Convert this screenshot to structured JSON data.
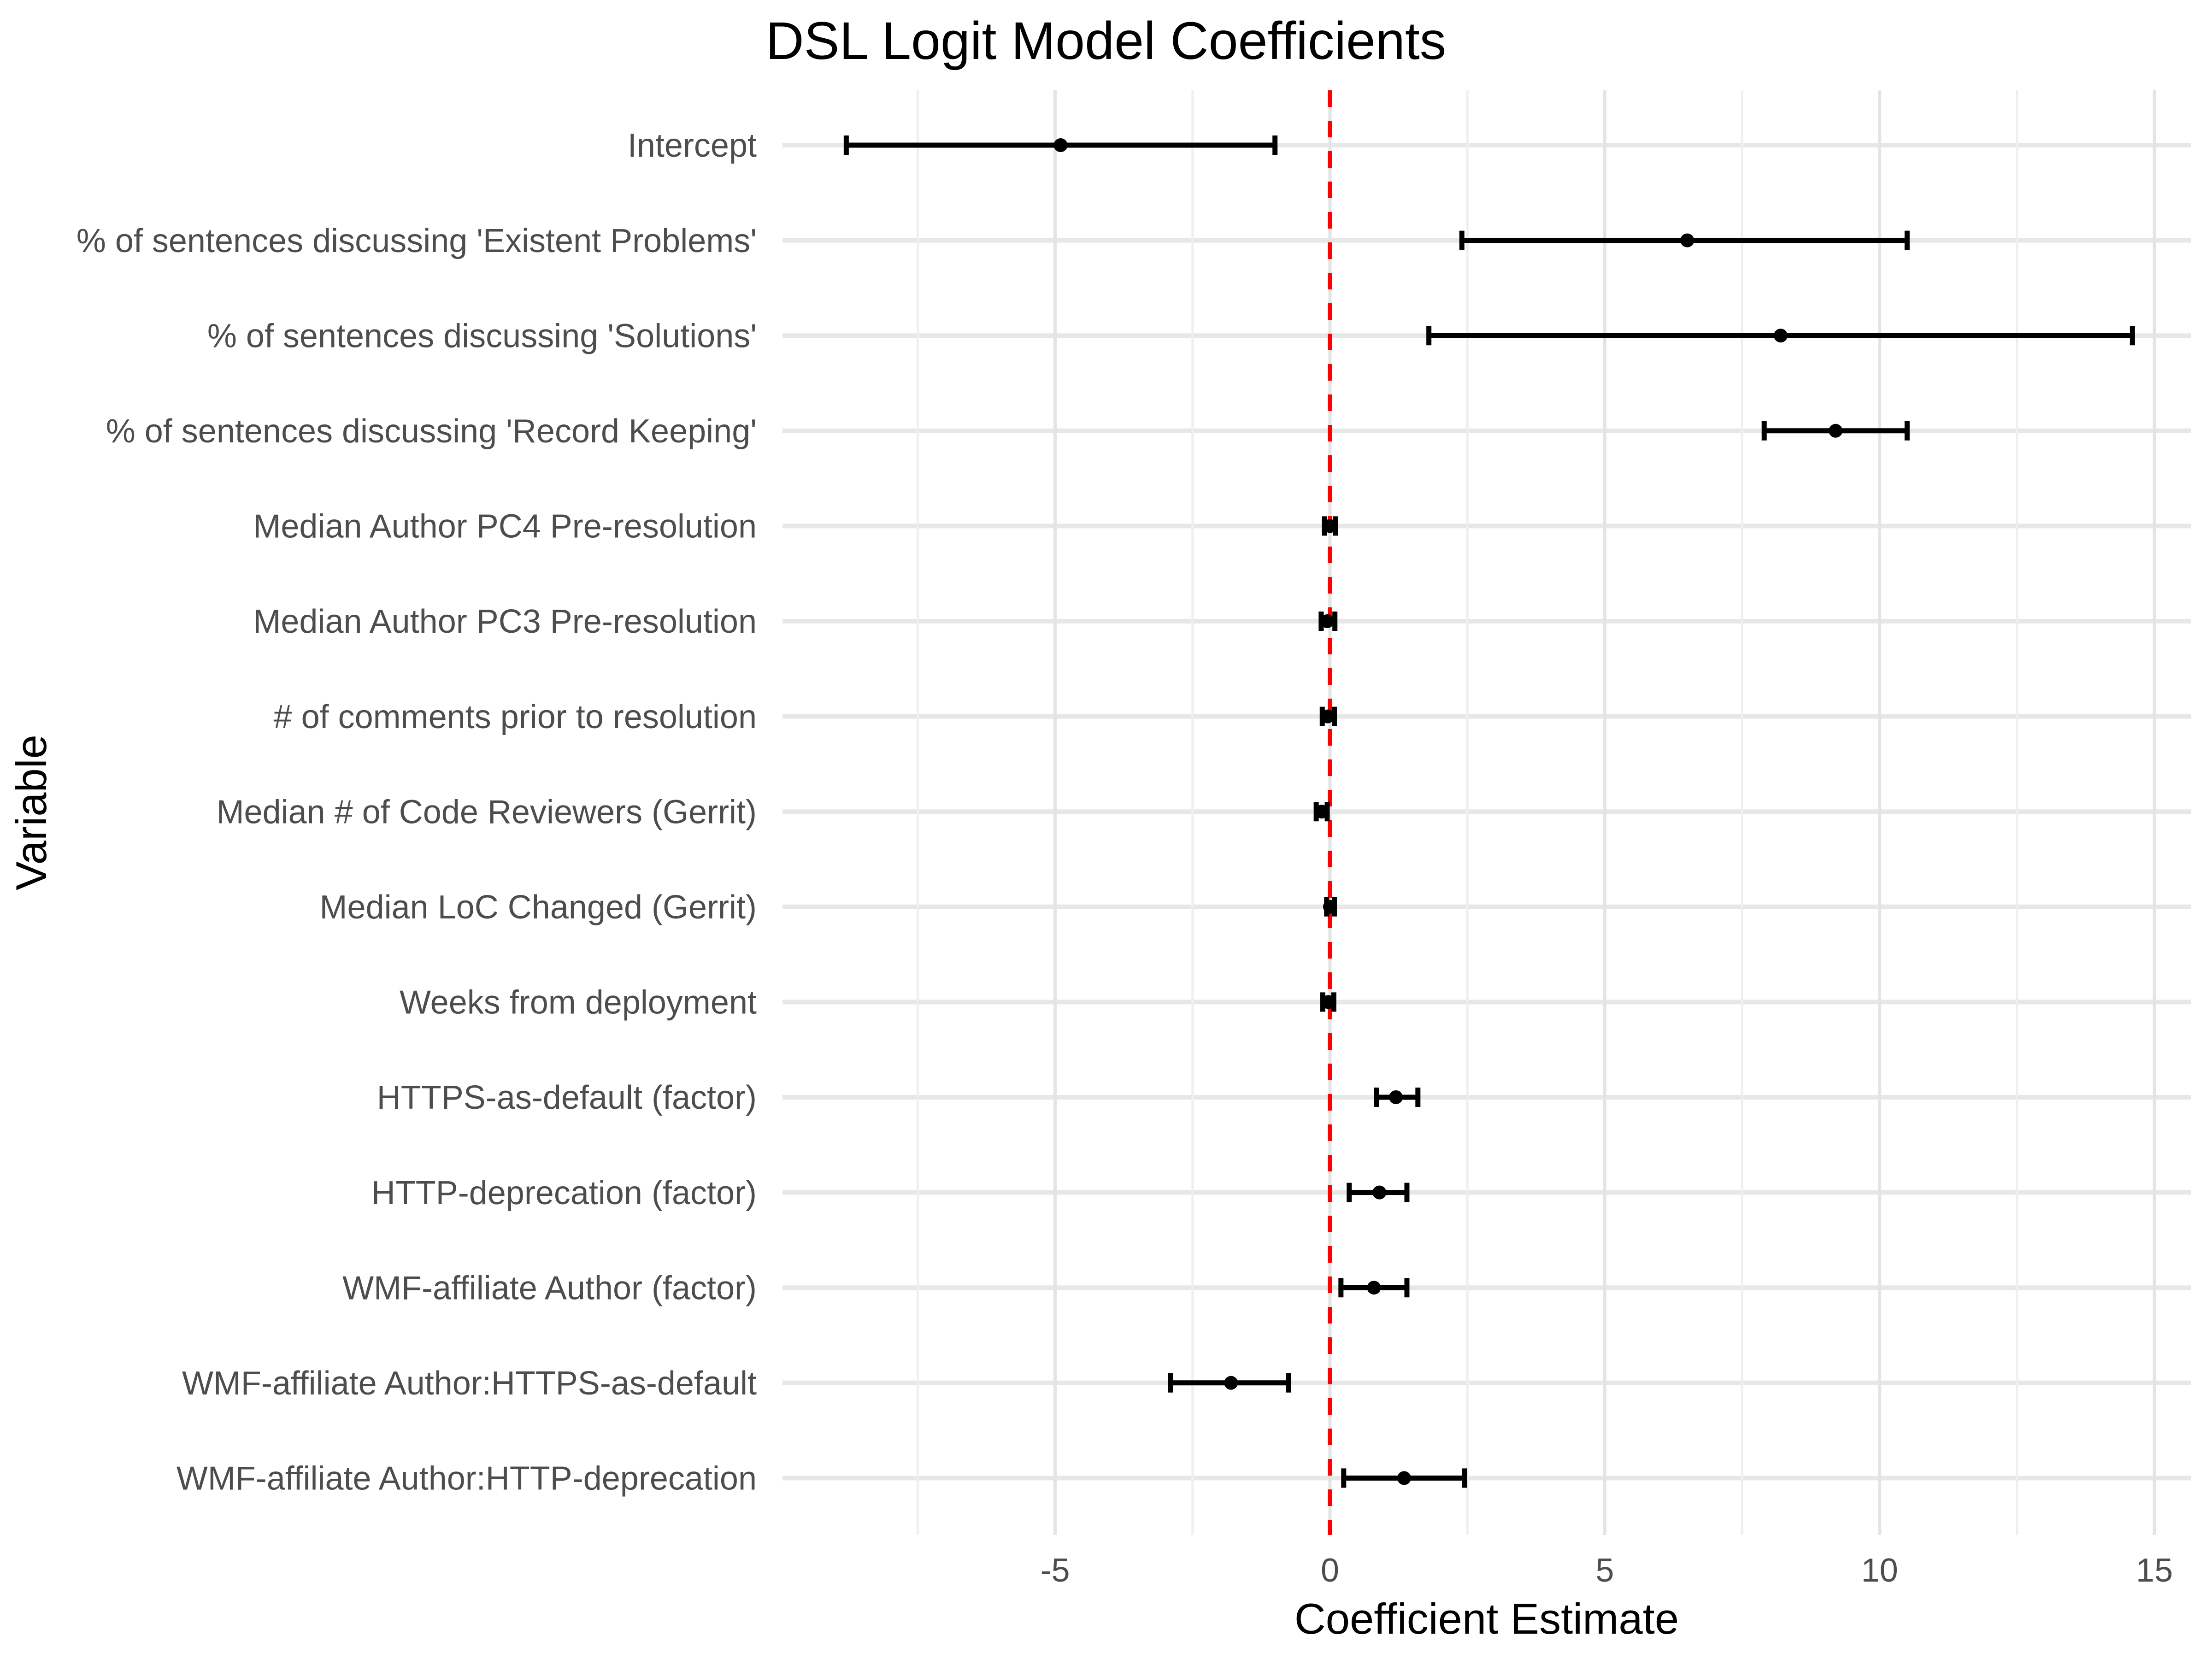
{
  "chart_data": {
    "type": "scatter",
    "variant": "coefficient_errorbar_forest_plot",
    "title": "DSL Logit Model Coefficients",
    "xlabel": "Coefficient Estimate",
    "ylabel": "Variable",
    "xlim": [
      -9.96,
      15.67
    ],
    "x_ticks": [
      -5,
      0,
      5,
      10,
      15
    ],
    "x_minor_gridlines": [
      -7.5,
      -2.5,
      2.5,
      7.5,
      12.5
    ],
    "grid": true,
    "legend": "none",
    "reference_line": {
      "x": 0,
      "color": "#ff0000",
      "style": "dashed"
    },
    "style": {
      "background": "#ffffff",
      "point_color": "#000000",
      "errorbar_color": "#000000",
      "row_gridline_color": "#e7e7e7",
      "major_gridline_color": "#e4e4e4",
      "minor_gridline_color": "#efefef",
      "tick_text_color": "#4d4d4d",
      "title_text_color": "#000000"
    },
    "points": [
      {
        "label": "Intercept",
        "estimate": -4.9,
        "ci_low": -8.8,
        "ci_high": -1.0
      },
      {
        "label": "% of sentences discussing 'Existent Problems'",
        "estimate": 6.5,
        "ci_low": 2.4,
        "ci_high": 10.5
      },
      {
        "label": "% of sentences discussing 'Solutions'",
        "estimate": 8.2,
        "ci_low": 1.8,
        "ci_high": 14.6
      },
      {
        "label": "% of sentences discussing 'Record Keeping'",
        "estimate": 9.2,
        "ci_low": 7.9,
        "ci_high": 10.5
      },
      {
        "label": "Median Author PC4 Pre-resolution",
        "estimate": 0.0,
        "ci_low": -0.1,
        "ci_high": 0.1
      },
      {
        "label": "Median Author PC3 Pre-resolution",
        "estimate": -0.05,
        "ci_low": -0.16,
        "ci_high": 0.09
      },
      {
        "label": "# of comments prior to resolution",
        "estimate": -0.04,
        "ci_low": -0.14,
        "ci_high": 0.08
      },
      {
        "label": "Median # of Code Reviewers (Gerrit)",
        "estimate": -0.15,
        "ci_low": -0.25,
        "ci_high": -0.05
      },
      {
        "label": "Median LoC Changed (Gerrit)",
        "estimate": 0.0,
        "ci_low": -0.06,
        "ci_high": 0.08
      },
      {
        "label": "Weeks from deployment",
        "estimate": -0.03,
        "ci_low": -0.13,
        "ci_high": 0.07
      },
      {
        "label": "HTTPS-as-default (factor)",
        "estimate": 1.2,
        "ci_low": 0.85,
        "ci_high": 1.6
      },
      {
        "label": "HTTP-deprecation (factor)",
        "estimate": 0.9,
        "ci_low": 0.35,
        "ci_high": 1.4
      },
      {
        "label": "WMF-affiliate Author (factor)",
        "estimate": 0.8,
        "ci_low": 0.2,
        "ci_high": 1.4
      },
      {
        "label": "WMF-affiliate Author:HTTPS-as-default",
        "estimate": -1.8,
        "ci_low": -2.9,
        "ci_high": -0.75
      },
      {
        "label": "WMF-affiliate Author:HTTP-deprecation",
        "estimate": 1.35,
        "ci_low": 0.25,
        "ci_high": 2.45
      }
    ]
  }
}
